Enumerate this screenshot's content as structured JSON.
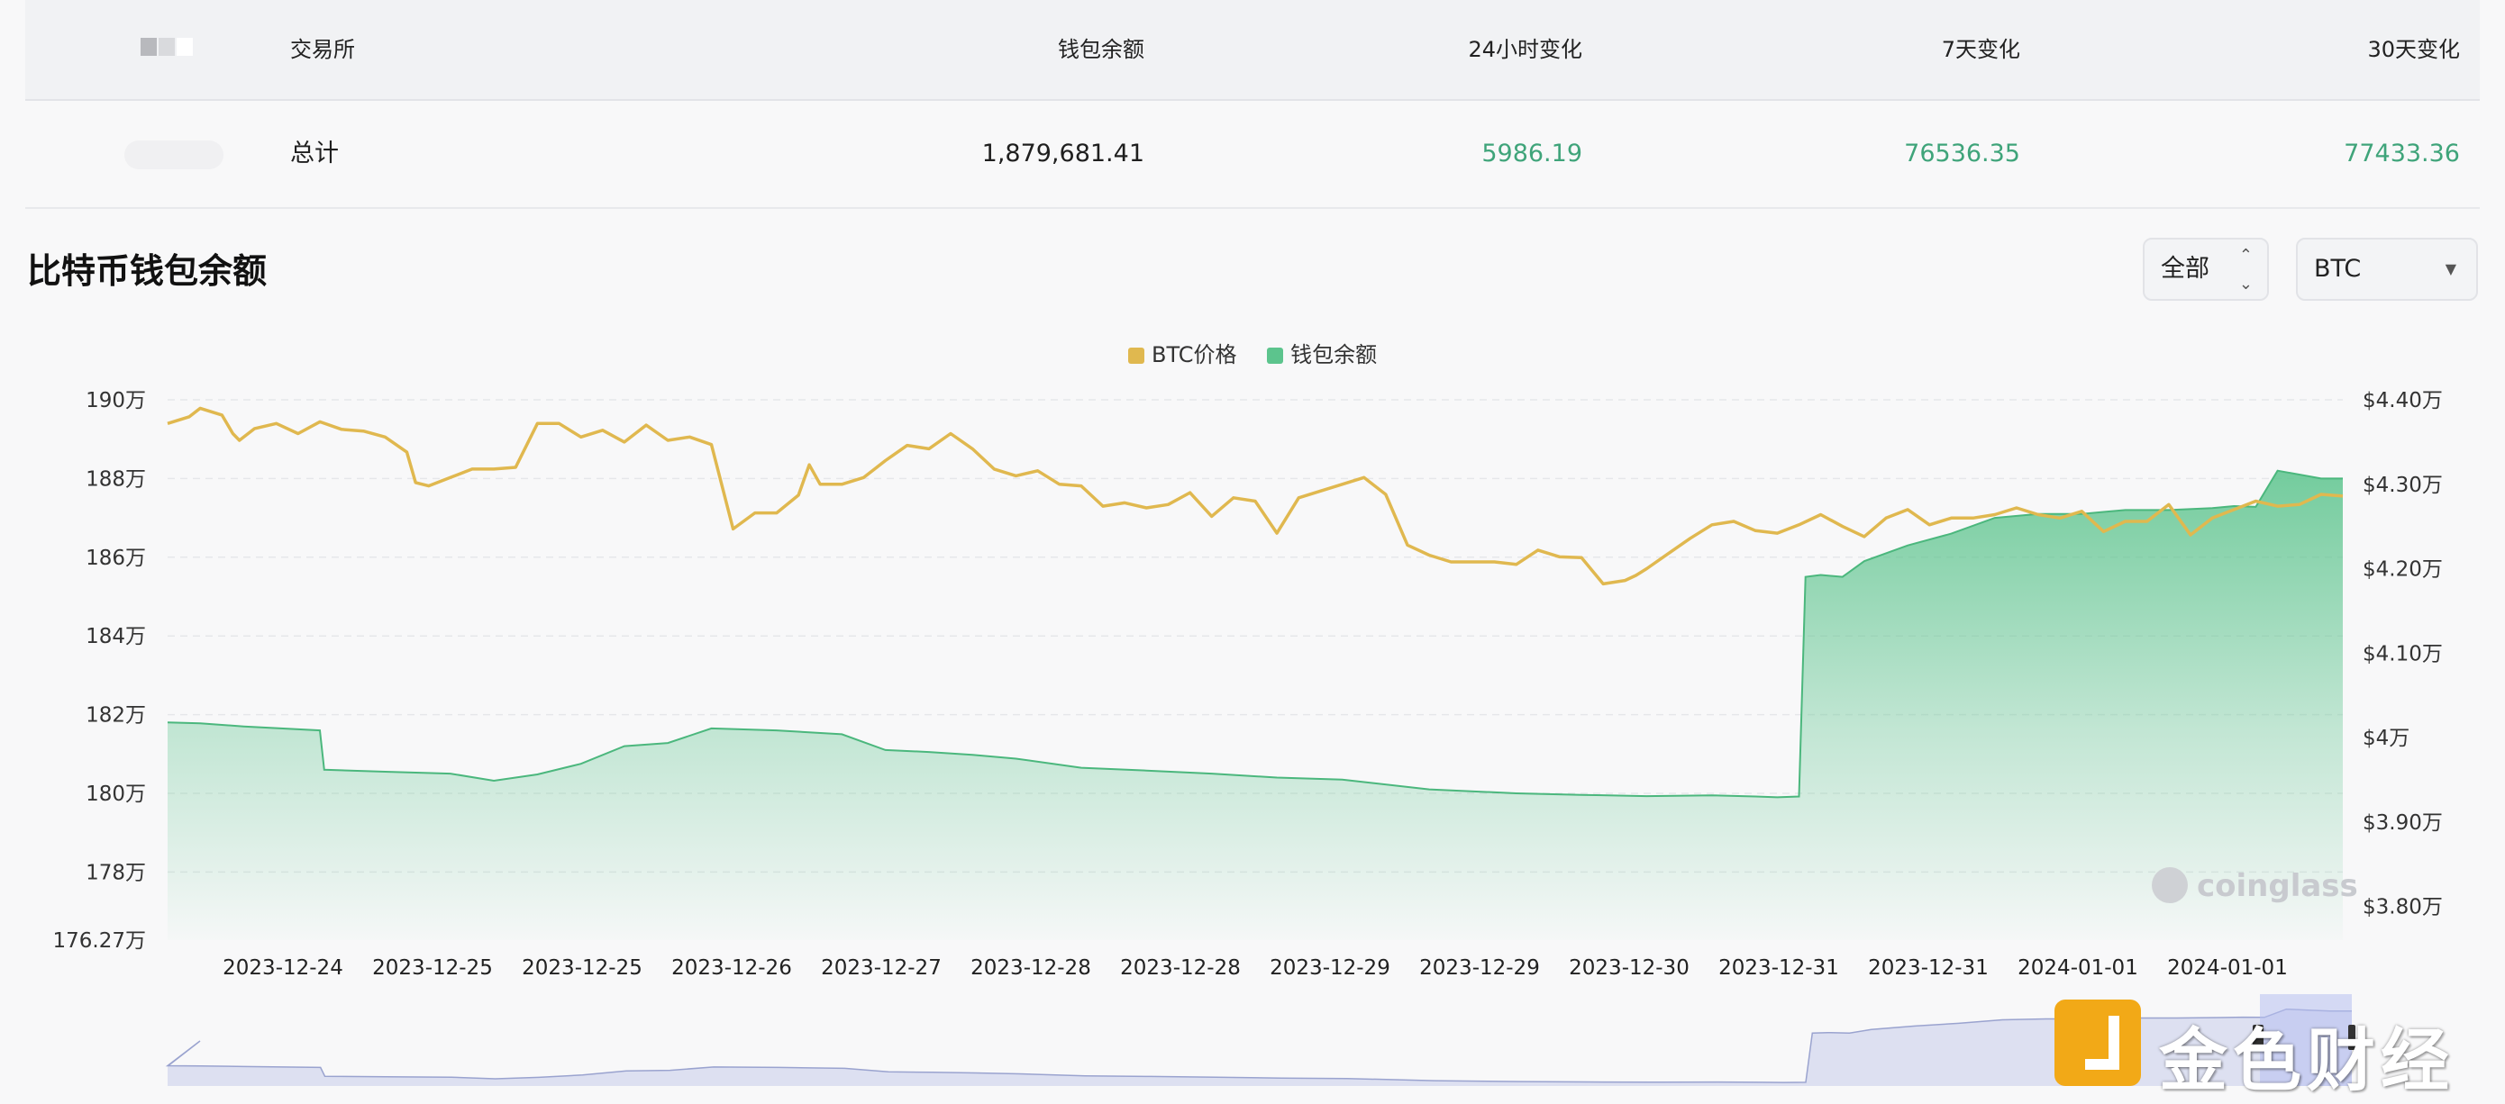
{
  "table": {
    "headers": {
      "exchange": "交易所",
      "balance": "钱包余额",
      "change_24h": "24小时变化",
      "change_7d": "7天变化",
      "change_30d": "30天变化"
    },
    "total_row": {
      "exchange": "总计",
      "balance": "1,879,681.41",
      "change_24h": "5986.19",
      "change_7d": "76536.35",
      "change_30d": "77433.36"
    }
  },
  "section_title": "比特币钱包余额",
  "controls": {
    "range_select": "全部",
    "coin_select": "BTC"
  },
  "colors": {
    "price": "#e0b84f",
    "balance": "#5cc48d",
    "positive": "#3fa47a"
  },
  "watermark": "coinglass",
  "brand": "金色财经",
  "chart_data": {
    "type": "line",
    "legend": [
      {
        "name": "BTC价格",
        "color": "#e0b84f"
      },
      {
        "name": "钱包余额",
        "color": "#5cc48d"
      }
    ],
    "legend_position": "top-center",
    "x_ticks": [
      "2023-12-24",
      "2023-12-25",
      "2023-12-25",
      "2023-12-26",
      "2023-12-27",
      "2023-12-28",
      "2023-12-28",
      "2023-12-29",
      "2023-12-29",
      "2023-12-30",
      "2023-12-31",
      "2023-12-31",
      "2024-01-01",
      "2024-01-01"
    ],
    "y_left": {
      "min": 1762700,
      "max": 1900000,
      "ticks": [
        {
          "v": 1900000,
          "label": "190万"
        },
        {
          "v": 1880000,
          "label": "188万"
        },
        {
          "v": 1860000,
          "label": "186万"
        },
        {
          "v": 1840000,
          "label": "184万"
        },
        {
          "v": 1820000,
          "label": "182万"
        },
        {
          "v": 1800000,
          "label": "180万"
        },
        {
          "v": 1780000,
          "label": "178万"
        },
        {
          "v": 1762700,
          "label": "176.27万"
        }
      ]
    },
    "y_right": {
      "min": 37600,
      "max": 44000,
      "ticks": [
        {
          "v": 44000,
          "label": "$4.40万"
        },
        {
          "v": 43000,
          "label": "$4.30万"
        },
        {
          "v": 42000,
          "label": "$4.20万"
        },
        {
          "v": 41000,
          "label": "$4.10万"
        },
        {
          "v": 40000,
          "label": "$4万"
        },
        {
          "v": 39000,
          "label": "$3.90万"
        },
        {
          "v": 38000,
          "label": "$3.80万"
        }
      ]
    },
    "grid": "horizontal-dashed",
    "series": [
      {
        "name": "钱包余额",
        "axis": "left",
        "type": "area",
        "x": [
          0,
          1.5,
          3.5,
          7,
          7.2,
          10,
          13,
          15,
          17,
          19,
          21,
          23,
          25,
          28,
          31,
          33,
          35,
          37,
          39,
          42,
          45,
          48,
          51,
          54,
          58,
          62,
          65,
          68,
          71,
          73,
          74,
          75,
          75.3,
          76,
          77,
          78,
          80,
          82,
          84,
          86,
          88,
          89,
          90,
          92,
          94,
          95,
          96,
          97,
          98,
          99,
          100
        ],
        "y": [
          1818000,
          1817800,
          1817000,
          1816000,
          1806000,
          1805500,
          1805000,
          1803200,
          1804800,
          1807500,
          1812000,
          1812800,
          1816500,
          1816000,
          1815000,
          1811000,
          1810500,
          1809800,
          1808800,
          1806500,
          1805800,
          1805000,
          1804000,
          1803500,
          1801000,
          1800000,
          1799600,
          1799300,
          1799500,
          1799200,
          1799000,
          1799200,
          1855000,
          1855500,
          1855000,
          1859000,
          1863000,
          1866000,
          1870000,
          1871000,
          1871000,
          1871500,
          1872000,
          1872000,
          1872500,
          1873000,
          1872800,
          1882000,
          1881000,
          1880000,
          1880000
        ]
      },
      {
        "name": "BTC价格",
        "axis": "right",
        "type": "line",
        "x": [
          0,
          1,
          1.5,
          2.5,
          3,
          3.3,
          4,
          5,
          6,
          7,
          8,
          9,
          10,
          11,
          11.4,
          12,
          13,
          14,
          15,
          16,
          17,
          18,
          19,
          20,
          21,
          22,
          23,
          24,
          25,
          26,
          27,
          28,
          29,
          29.5,
          30,
          31,
          32,
          32.5,
          33,
          34,
          35,
          36,
          37,
          38,
          39,
          40,
          41,
          42,
          43,
          44,
          45,
          46,
          47,
          48,
          49,
          50,
          51,
          52,
          53,
          54,
          55,
          56,
          57,
          58,
          59,
          60,
          61,
          62,
          63,
          64,
          65,
          66,
          67,
          67.5,
          68,
          69,
          70,
          71,
          72,
          73,
          74,
          75,
          76,
          77,
          78,
          79,
          80,
          81,
          82,
          83,
          84,
          85,
          86,
          87,
          88,
          89,
          90,
          91,
          92,
          93,
          94,
          95,
          96,
          97,
          98,
          99,
          100
        ],
        "y": [
          43720,
          43800,
          43900,
          43820,
          43600,
          43520,
          43660,
          43720,
          43600,
          43740,
          43650,
          43630,
          43560,
          43380,
          43020,
          42980,
          43080,
          43180,
          43180,
          43200,
          43720,
          43720,
          43560,
          43640,
          43500,
          43700,
          43520,
          43560,
          43470,
          42470,
          42660,
          42660,
          42870,
          43230,
          43000,
          43000,
          43080,
          43180,
          43280,
          43460,
          43420,
          43600,
          43420,
          43180,
          43100,
          43160,
          43000,
          42980,
          42740,
          42780,
          42720,
          42760,
          42900,
          42620,
          42840,
          42800,
          42420,
          42840,
          42920,
          43000,
          43080,
          42880,
          42280,
          42160,
          42080,
          42080,
          42080,
          42050,
          42220,
          42140,
          42130,
          41820,
          41860,
          41920,
          42000,
          42180,
          42360,
          42520,
          42560,
          42450,
          42420,
          42520,
          42640,
          42500,
          42380,
          42600,
          42700,
          42520,
          42600,
          42600,
          42640,
          42720,
          42640,
          42600,
          42680,
          42440,
          42560,
          42560,
          42760,
          42400,
          42600,
          42700,
          42800,
          42740,
          42760,
          42880,
          42860
        ]
      }
    ]
  }
}
